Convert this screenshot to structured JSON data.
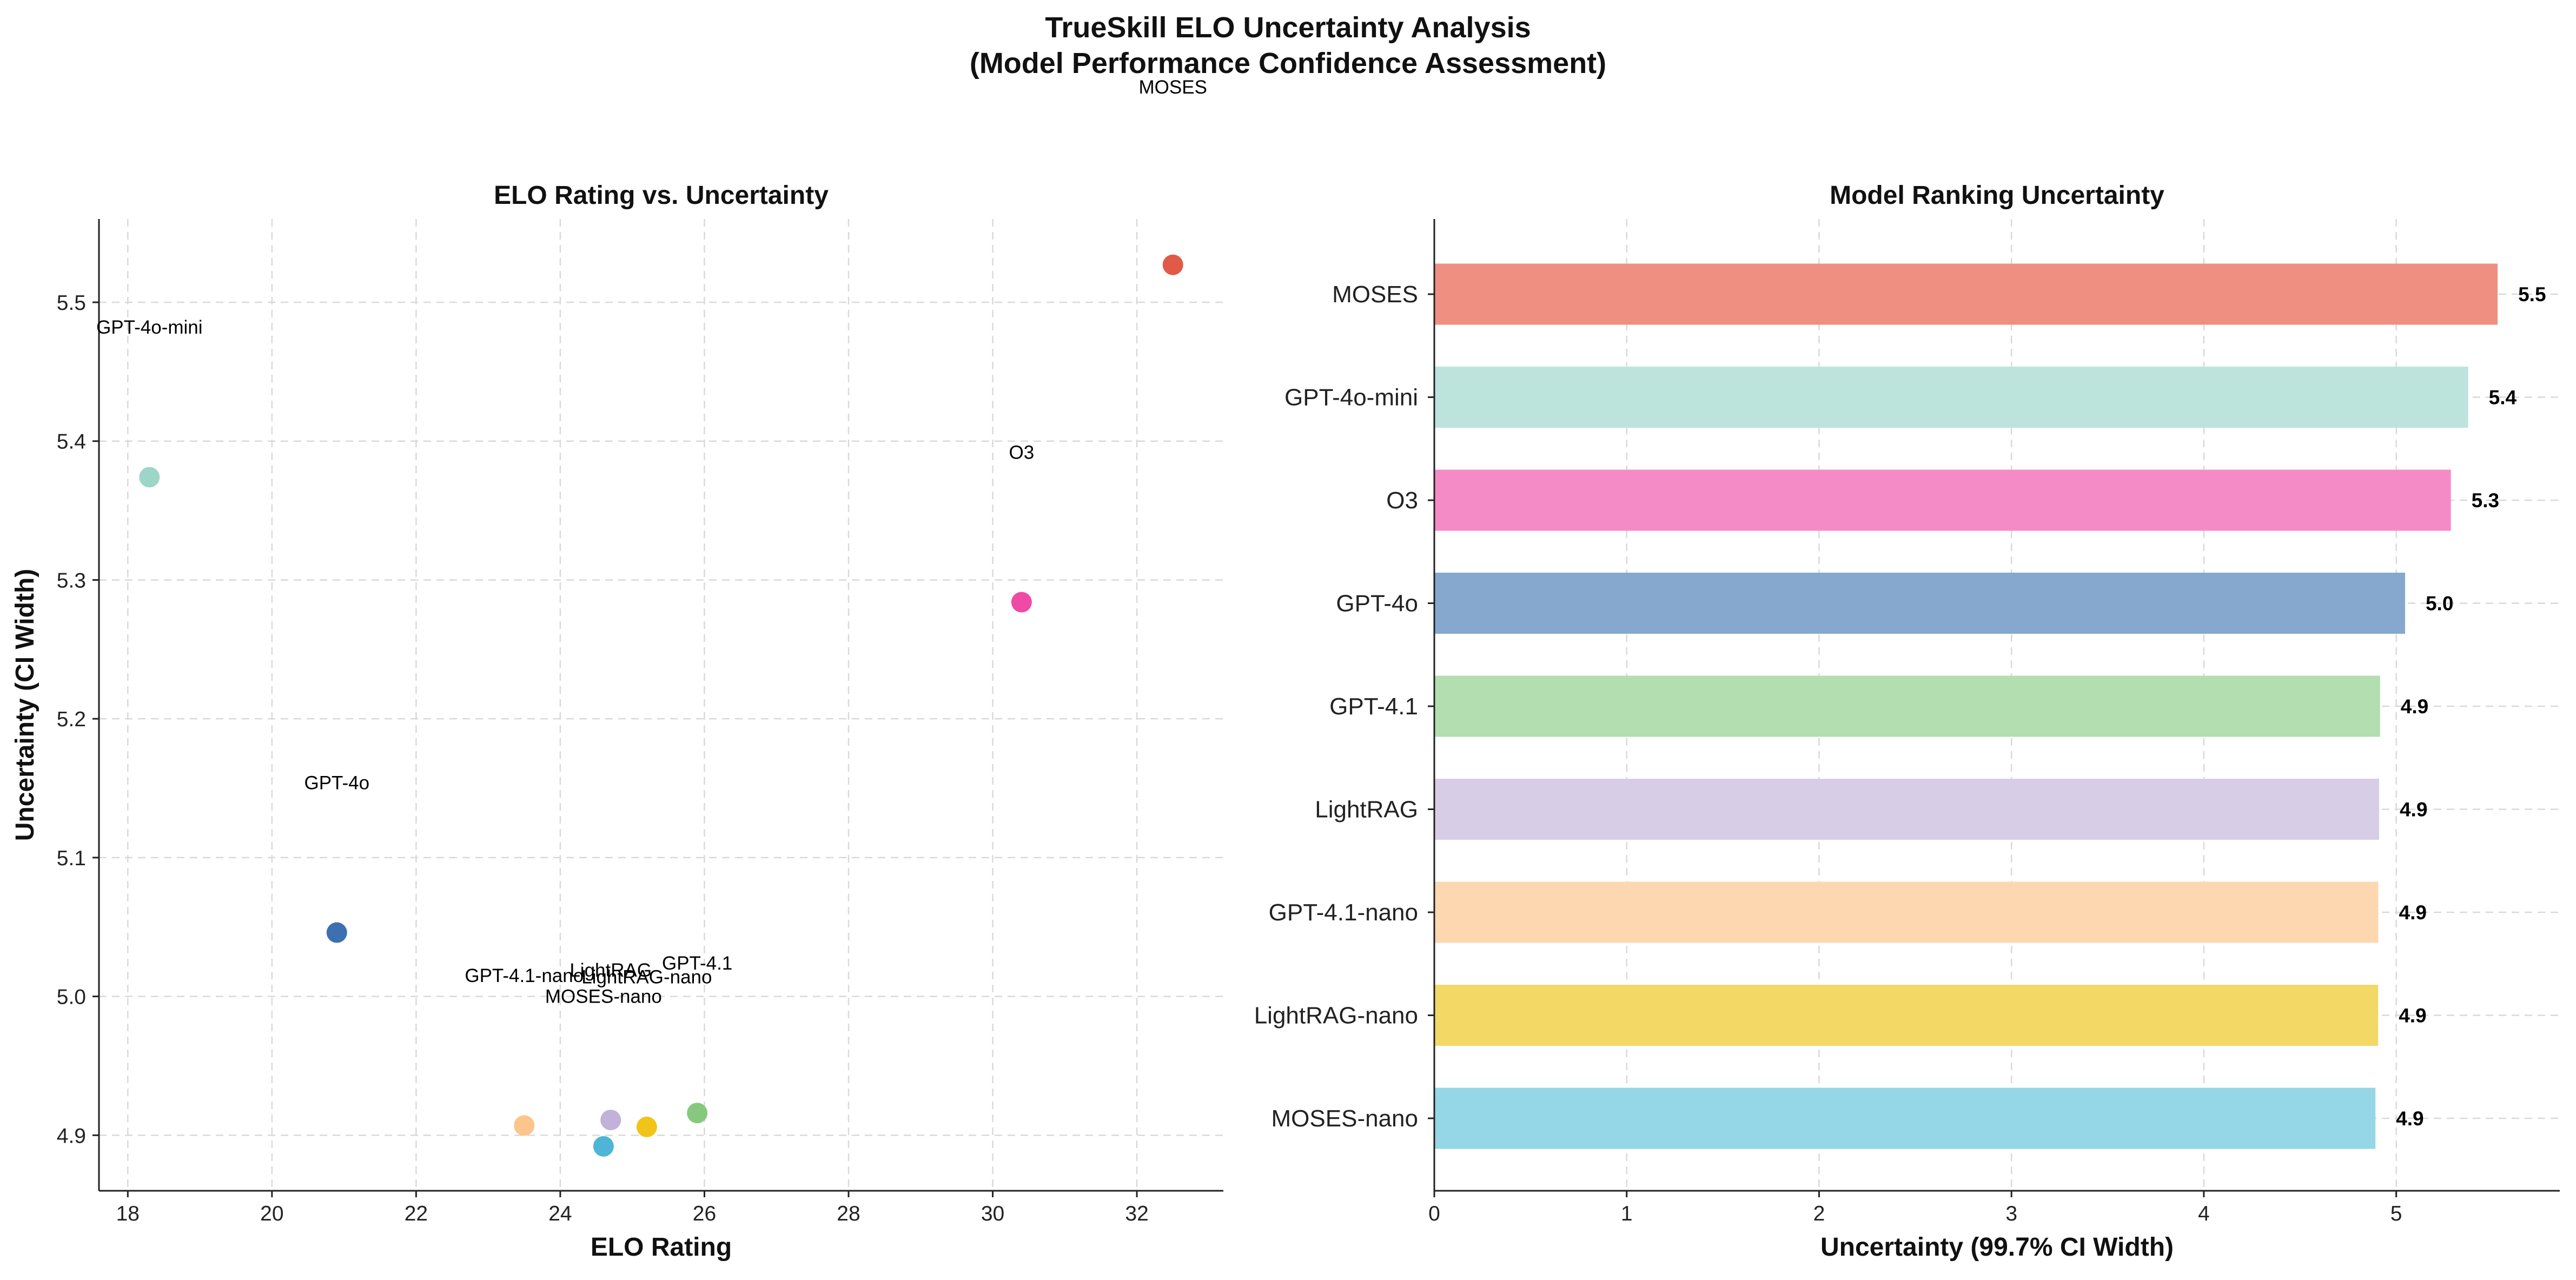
{
  "figure": {
    "title_line1": "TrueSkill ELO Uncertainty Analysis",
    "title_line2": "(Model Performance Confidence Assessment)"
  },
  "chart_data": [
    {
      "type": "scatter",
      "title": "ELO Rating vs. Uncertainty",
      "xlabel": "ELO Rating",
      "ylabel": "Uncertainty (CI Width)",
      "xlim": [
        17.6,
        33.2
      ],
      "ylim": [
        4.86,
        5.56
      ],
      "xticks": [
        18,
        20,
        22,
        24,
        26,
        28,
        30,
        32
      ],
      "yticks": [
        4.9,
        5.0,
        5.1,
        5.2,
        5.3,
        5.4,
        5.5
      ],
      "grid": true,
      "points": [
        {
          "label": "MOSES",
          "x": 32.5,
          "y": 5.527,
          "color": "#e05a47",
          "label_x": 32.5,
          "label_y": 5.655
        },
        {
          "label": "GPT-4o-mini",
          "x": 18.3,
          "y": 5.374,
          "color": "#9dd6c8",
          "label_x": 18.3,
          "label_y": 5.482
        },
        {
          "label": "O3",
          "x": 30.4,
          "y": 5.284,
          "color": "#ef4aa5",
          "label_x": 30.4,
          "label_y": 5.392
        },
        {
          "label": "GPT-4o",
          "x": 20.9,
          "y": 5.046,
          "color": "#3d70b0",
          "label_x": 20.9,
          "label_y": 5.154
        },
        {
          "label": "GPT-4.1",
          "x": 25.9,
          "y": 4.916,
          "color": "#86c97e",
          "label_x": 25.9,
          "label_y": 5.024
        },
        {
          "label": "LightRAG",
          "x": 24.7,
          "y": 4.911,
          "color": "#c2b1d9",
          "label_x": 24.7,
          "label_y": 5.019
        },
        {
          "label": "GPT-4.1-nano",
          "x": 23.5,
          "y": 4.907,
          "color": "#fdc48c",
          "label_x": 23.5,
          "label_y": 5.015
        },
        {
          "label": "LightRAG-nano",
          "x": 25.2,
          "y": 4.906,
          "color": "#f0c419",
          "label_x": 25.2,
          "label_y": 5.014
        },
        {
          "label": "MOSES-nano",
          "x": 24.6,
          "y": 4.892,
          "color": "#4fb5d6",
          "label_x": 24.6,
          "label_y": 5.0
        }
      ]
    },
    {
      "type": "bar",
      "orientation": "horizontal",
      "title": "Model Ranking Uncertainty",
      "xlabel": "Uncertainty (99.7% CI Width)",
      "ylabel": "",
      "xlim": [
        0,
        5.85
      ],
      "xticks": [
        0,
        1,
        2,
        3,
        4,
        5
      ],
      "grid": true,
      "categories": [
        "MOSES",
        "GPT-4o-mini",
        "O3",
        "GPT-4o",
        "GPT-4.1",
        "LightRAG",
        "GPT-4.1-nano",
        "LightRAG-nano",
        "MOSES-nano"
      ],
      "values": [
        5.527,
        5.374,
        5.284,
        5.046,
        4.916,
        4.911,
        4.907,
        4.906,
        4.892
      ],
      "value_labels": [
        "5.5",
        "5.4",
        "5.3",
        "5.0",
        "4.9",
        "4.9",
        "4.9",
        "4.9",
        "4.9"
      ],
      "colors": [
        "#ee8f82",
        "#bde4dc",
        "#f58bc6",
        "#86a8cf",
        "#b2deb0",
        "#d8cde6",
        "#fcd7b0",
        "#f3d866",
        "#95d7e6"
      ]
    }
  ]
}
